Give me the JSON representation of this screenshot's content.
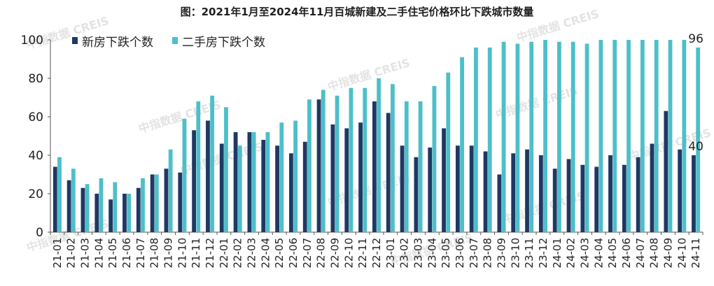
{
  "chart_data": {
    "type": "bar",
    "title": "图：2021年1月至2024年11月百城新建及二手住宅价格环比下跌城市数量",
    "categories": [
      "21-01",
      "21-02",
      "21-03",
      "21-04",
      "21-05",
      "21-06",
      "21-07",
      "21-08",
      "21-09",
      "21-10",
      "21-11",
      "21-12",
      "22-01",
      "22-02",
      "22-03",
      "22-04",
      "22-05",
      "22-06",
      "22-07",
      "22-08",
      "22-09",
      "22-10",
      "22-11",
      "22-12",
      "23-01",
      "23-02",
      "23-03",
      "23-04",
      "23-05",
      "23-06",
      "23-07",
      "23-08",
      "23-09",
      "23-10",
      "23-11",
      "23-12",
      "24-01",
      "24-02",
      "24-03",
      "24-04",
      "24-05",
      "24-06",
      "24-07",
      "24-08",
      "24-09",
      "24-10",
      "24-11"
    ],
    "series": [
      {
        "name": "新房下跌个数",
        "color": "#1f3864",
        "values": [
          34,
          27,
          23,
          20,
          17,
          20,
          23,
          30,
          33,
          31,
          53,
          58,
          46,
          52,
          52,
          48,
          45,
          41,
          47,
          69,
          56,
          54,
          57,
          68,
          62,
          45,
          39,
          44,
          54,
          45,
          45,
          42,
          30,
          41,
          43,
          40,
          33,
          38,
          35,
          34,
          40,
          35,
          39,
          46,
          63,
          43,
          40
        ]
      },
      {
        "name": "二手房下跌个数",
        "color": "#4dbfc9",
        "values": [
          39,
          33,
          25,
          28,
          26,
          20,
          28,
          30,
          43,
          59,
          68,
          71,
          65,
          45,
          52,
          52,
          57,
          58,
          69,
          74,
          71,
          75,
          75,
          80,
          77,
          68,
          68,
          76,
          83,
          91,
          96,
          96,
          99,
          98,
          99,
          100,
          99,
          99,
          98,
          100,
          100,
          100,
          100,
          100,
          100,
          100,
          96
        ]
      }
    ],
    "ylim": [
      0,
      100
    ],
    "yticks": [
      0,
      20,
      40,
      60,
      80,
      100
    ],
    "data_labels": [
      {
        "series": 0,
        "index": 46,
        "text": "40"
      },
      {
        "series": 1,
        "index": 46,
        "text": "96"
      }
    ],
    "legend": "top-left",
    "grid": false
  },
  "watermark": "中指数据 CREIS"
}
